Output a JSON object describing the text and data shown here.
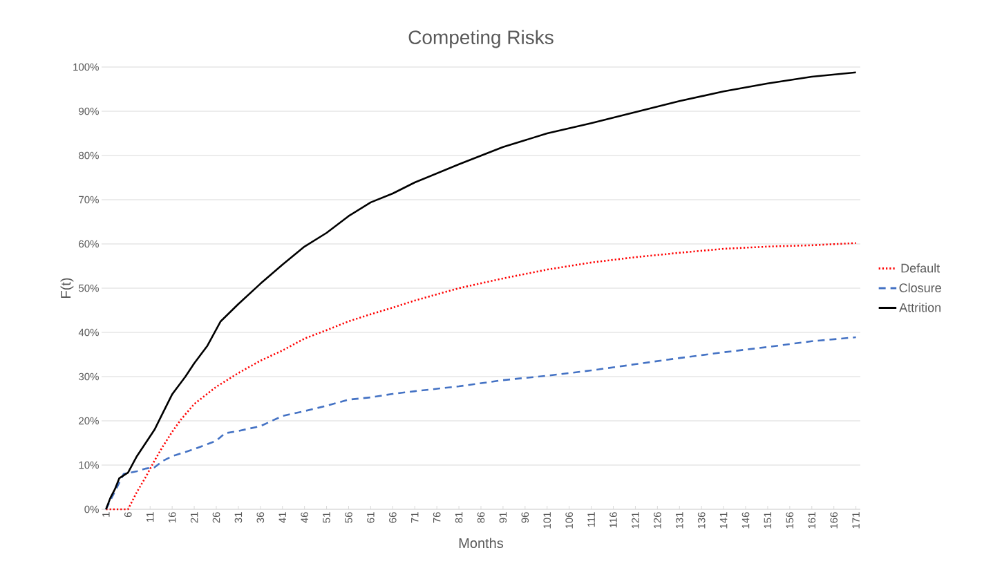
{
  "chart_data": {
    "type": "line",
    "title": "Competing Risks",
    "xlabel": "Months",
    "ylabel": "F(t)",
    "xlim": [
      0,
      172
    ],
    "ylim": [
      0,
      100
    ],
    "xticks": [
      1,
      6,
      11,
      16,
      21,
      26,
      31,
      36,
      41,
      46,
      51,
      56,
      61,
      66,
      71,
      76,
      81,
      86,
      91,
      96,
      101,
      106,
      111,
      116,
      121,
      126,
      131,
      136,
      141,
      146,
      151,
      156,
      161,
      166,
      171
    ],
    "yticks": [
      {
        "value": 0,
        "label": "0%"
      },
      {
        "value": 10,
        "label": "10%"
      },
      {
        "value": 20,
        "label": "20%"
      },
      {
        "value": 30,
        "label": "30%"
      },
      {
        "value": 40,
        "label": "40%"
      },
      {
        "value": 50,
        "label": "50%"
      },
      {
        "value": 60,
        "label": "60%"
      },
      {
        "value": 70,
        "label": "70%"
      },
      {
        "value": 80,
        "label": "80%"
      },
      {
        "value": 90,
        "label": "90%"
      },
      {
        "value": 100,
        "label": "100%"
      }
    ],
    "grid": "y",
    "legend": "right",
    "marker": "none",
    "series": [
      {
        "name": "Default",
        "color": "#ff0000",
        "line_style": "dotted",
        "x": [
          1,
          6,
          8,
          10,
          12,
          14,
          16,
          18,
          21,
          26,
          31,
          36,
          41,
          46,
          51,
          56,
          61,
          66,
          71,
          81,
          91,
          101,
          111,
          121,
          131,
          141,
          151,
          161,
          171
        ],
        "values": [
          0,
          0,
          3.9,
          7.3,
          11,
          14.4,
          17.5,
          20.3,
          23.8,
          27.7,
          30.8,
          33.6,
          35.9,
          38.6,
          40.5,
          42.5,
          44.1,
          45.6,
          47.2,
          50,
          52.2,
          54.2,
          55.8,
          57,
          58,
          58.9,
          59.4,
          59.7,
          60.2
        ]
      },
      {
        "name": "Closure",
        "color": "#4472c4",
        "line_style": "dashed",
        "x": [
          1,
          3,
          5,
          8,
          10,
          12,
          14,
          16,
          21,
          26,
          28,
          31,
          36,
          41,
          46,
          51,
          56,
          61,
          66,
          71,
          81,
          91,
          101,
          111,
          121,
          131,
          141,
          151,
          161,
          171
        ],
        "values": [
          0,
          4,
          8,
          8.6,
          9.2,
          9.5,
          11,
          12,
          13.6,
          15.5,
          17.2,
          17.7,
          18.8,
          21.1,
          22.2,
          23.4,
          24.8,
          25.3,
          26.1,
          26.7,
          27.8,
          29.2,
          30.2,
          31.4,
          32.8,
          34.2,
          35.5,
          36.7,
          38,
          38.9
        ]
      },
      {
        "name": "Attrition",
        "color": "#000000",
        "line_style": "solid",
        "x": [
          1,
          2,
          3,
          4,
          6,
          8,
          10,
          12,
          14,
          16,
          19,
          21,
          24,
          27,
          31,
          36,
          41,
          46,
          51,
          56,
          61,
          66,
          71,
          81,
          91,
          101,
          111,
          121,
          131,
          141,
          151,
          161,
          171
        ],
        "values": [
          0,
          2.6,
          4.5,
          7,
          8.3,
          12,
          15,
          18,
          22,
          26,
          30,
          33,
          37,
          42.5,
          46.4,
          51,
          55.3,
          59.4,
          62.5,
          66.3,
          69.4,
          71.4,
          73.9,
          78,
          81.9,
          85,
          87.3,
          89.8,
          92.3,
          94.5,
          96.3,
          97.8,
          98.8
        ]
      }
    ]
  }
}
